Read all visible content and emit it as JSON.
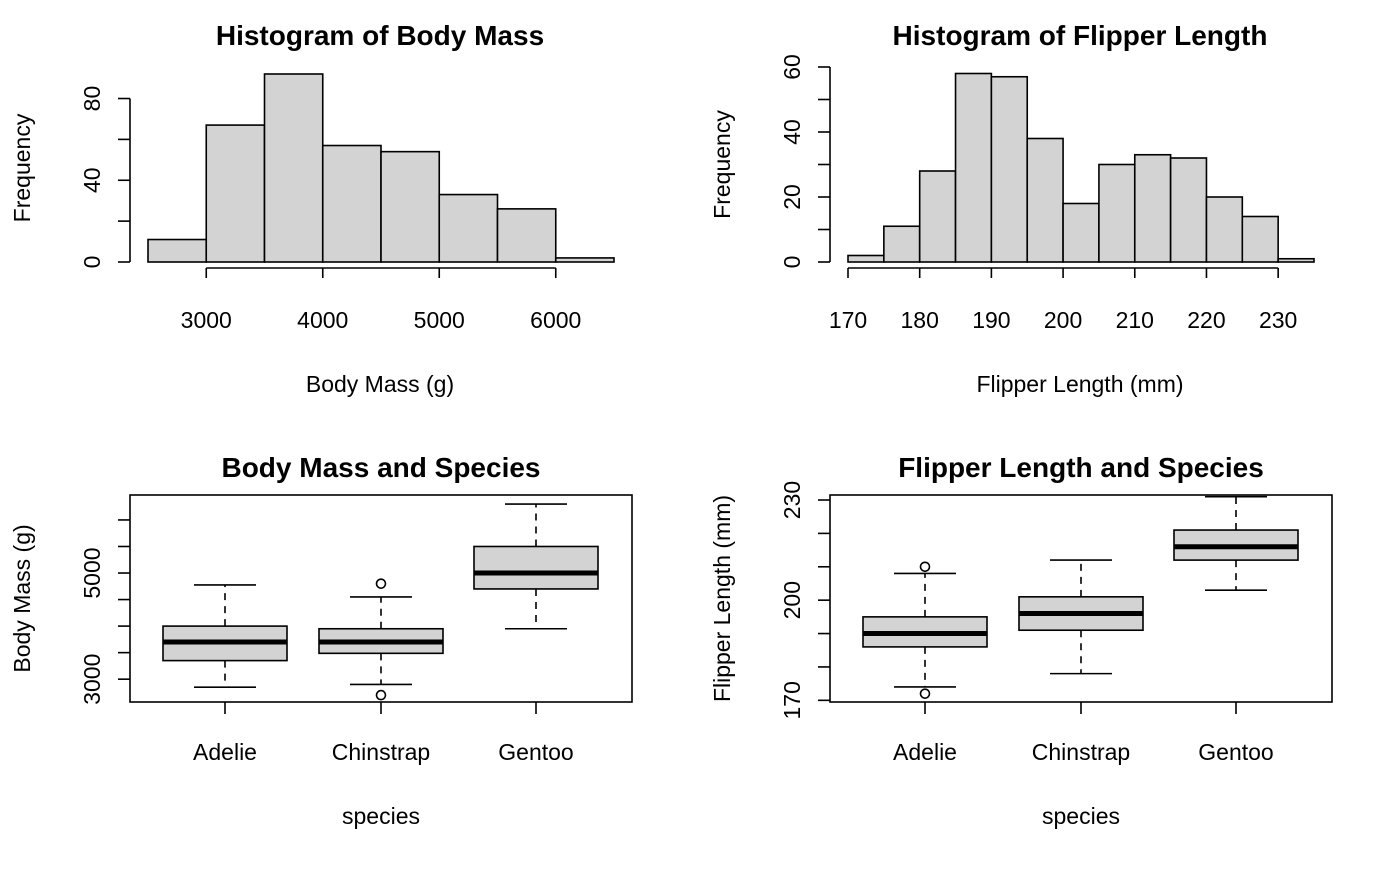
{
  "colors": {
    "background": "#ffffff",
    "bar_fill": "#d3d3d3",
    "box_fill": "#d3d3d3",
    "stroke": "#000000"
  },
  "chart_data": [
    {
      "type": "bar",
      "title": "Histogram of Body Mass",
      "xlabel": "Body Mass (g)",
      "ylabel": "Frequency",
      "bin_edges": [
        2500,
        3000,
        3500,
        4000,
        4500,
        5000,
        5500,
        6000,
        6500
      ],
      "values": [
        11,
        67,
        92,
        57,
        54,
        33,
        26,
        2
      ],
      "xlim": [
        2500,
        6500
      ],
      "ylim": [
        0,
        92
      ],
      "xticks": [
        3000,
        4000,
        5000,
        6000
      ],
      "yticks": [
        0,
        40,
        80
      ],
      "grid": false
    },
    {
      "type": "bar",
      "title": "Histogram of Flipper Length",
      "xlabel": "Flipper Length (mm)",
      "ylabel": "Frequency",
      "bin_edges": [
        170,
        175,
        180,
        185,
        190,
        195,
        200,
        205,
        210,
        215,
        220,
        225,
        230,
        235
      ],
      "values": [
        2,
        11,
        28,
        58,
        57,
        38,
        18,
        30,
        33,
        32,
        20,
        14,
        1
      ],
      "xlim": [
        170,
        235
      ],
      "ylim": [
        0,
        60
      ],
      "xticks": [
        170,
        180,
        190,
        200,
        210,
        220,
        230
      ],
      "yticks": [
        0,
        20,
        40,
        60
      ],
      "grid": false
    },
    {
      "type": "box",
      "title": "Body Mass and Species",
      "xlabel": "species",
      "ylabel": "Body Mass (g)",
      "categories": [
        "Adelie",
        "Chinstrap",
        "Gentoo"
      ],
      "series": [
        {
          "category": "Adelie",
          "whisker_low": 2850,
          "q1": 3350,
          "median": 3700,
          "q3": 4000,
          "whisker_high": 4775,
          "outliers": []
        },
        {
          "category": "Chinstrap",
          "whisker_low": 2900,
          "q1": 3487,
          "median": 3700,
          "q3": 3950,
          "whisker_high": 4550,
          "outliers": [
            2700,
            4800
          ]
        },
        {
          "category": "Gentoo",
          "whisker_low": 3950,
          "q1": 4700,
          "median": 5000,
          "q3": 5500,
          "whisker_high": 6300,
          "outliers": []
        }
      ],
      "ylim": [
        2570,
        6470
      ],
      "yticks": [
        3000,
        3500,
        4000,
        4500,
        5000,
        5500,
        6000
      ],
      "ytick_labels": [
        "3000",
        "",
        "",
        "",
        "5000",
        "",
        ""
      ],
      "grid": false
    },
    {
      "type": "box",
      "title": "Flipper Length and Species",
      "xlabel": "species",
      "ylabel": "Flipper Length (mm)",
      "categories": [
        "Adelie",
        "Chinstrap",
        "Gentoo"
      ],
      "series": [
        {
          "category": "Adelie",
          "whisker_low": 174,
          "q1": 186,
          "median": 190,
          "q3": 195,
          "whisker_high": 208,
          "outliers": [
            172,
            210
          ]
        },
        {
          "category": "Chinstrap",
          "whisker_low": 178,
          "q1": 191,
          "median": 196,
          "q3": 201,
          "whisker_high": 212,
          "outliers": []
        },
        {
          "category": "Gentoo",
          "whisker_low": 203,
          "q1": 212,
          "median": 216,
          "q3": 221,
          "whisker_high": 231,
          "outliers": []
        }
      ],
      "ylim": [
        169.5,
        231.5
      ],
      "yticks": [
        170,
        180,
        190,
        200,
        210,
        220,
        230
      ],
      "ytick_labels": [
        "170",
        "",
        "",
        "200",
        "",
        "",
        "230"
      ],
      "grid": false
    }
  ]
}
